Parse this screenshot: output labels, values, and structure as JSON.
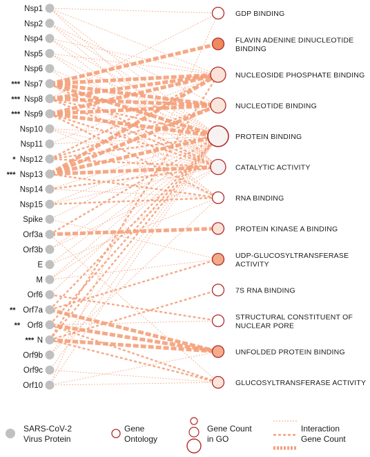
{
  "colors": {
    "edge": "#f4a07a",
    "protein_node": "#c0c0c0",
    "go_stroke": "#b02a2a",
    "text": "#1a1a1a"
  },
  "proteins": [
    {
      "name": "Nsp1",
      "sig": ""
    },
    {
      "name": "Nsp2",
      "sig": ""
    },
    {
      "name": "Nsp4",
      "sig": ""
    },
    {
      "name": "Nsp5",
      "sig": ""
    },
    {
      "name": "Nsp6",
      "sig": ""
    },
    {
      "name": "Nsp7",
      "sig": "***"
    },
    {
      "name": "Nsp8",
      "sig": "***"
    },
    {
      "name": "Nsp9",
      "sig": "***"
    },
    {
      "name": "Nsp10",
      "sig": ""
    },
    {
      "name": "Nsp11",
      "sig": ""
    },
    {
      "name": "Nsp12",
      "sig": "*"
    },
    {
      "name": "Nsp13",
      "sig": "***"
    },
    {
      "name": "Nsp14",
      "sig": ""
    },
    {
      "name": "Nsp15",
      "sig": ""
    },
    {
      "name": "Spike",
      "sig": ""
    },
    {
      "name": "Orf3a",
      "sig": ""
    },
    {
      "name": "Orf3b",
      "sig": ""
    },
    {
      "name": "E",
      "sig": ""
    },
    {
      "name": "M",
      "sig": ""
    },
    {
      "name": "Orf6",
      "sig": ""
    },
    {
      "name": "Orf7a",
      "sig": "**"
    },
    {
      "name": "Orf8",
      "sig": "**"
    },
    {
      "name": "N",
      "sig": "***"
    },
    {
      "name": "Orf9b",
      "sig": ""
    },
    {
      "name": "Orf9c",
      "sig": ""
    },
    {
      "name": "Orf10",
      "sig": ""
    }
  ],
  "go_terms": [
    {
      "lines": [
        "GDP BINDING"
      ],
      "size": 1,
      "fill": "#ffffff"
    },
    {
      "lines": [
        "FLAVIN ADENINE DINUCLEOTIDE",
        "BINDING"
      ],
      "size": 1,
      "fill": "#ee8a5e"
    },
    {
      "lines": [
        "NUCLEOSIDE PHOSPHATE BINDING"
      ],
      "size": 2,
      "fill": "#fbe1d6"
    },
    {
      "lines": [
        "NUCLEOTIDE BINDING"
      ],
      "size": 2,
      "fill": "#fbe4da"
    },
    {
      "lines": [
        "PROTEIN BINDING"
      ],
      "size": 3,
      "fill": "#f7f2f2"
    },
    {
      "lines": [
        "CATALYTIC ACTIVITY"
      ],
      "size": 2,
      "fill": "#f6f0f0"
    },
    {
      "lines": [
        "RNA BINDING"
      ],
      "size": 1,
      "fill": "#ffffff"
    },
    {
      "lines": [
        "PROTEIN KINASE A BINDING"
      ],
      "size": 1,
      "fill": "#fbe1d6"
    },
    {
      "lines": [
        "UDP-GLUCOSYLTRANSFERASE",
        "ACTIVITY"
      ],
      "size": 1,
      "fill": "#f2aa88"
    },
    {
      "lines": [
        "7S RNA BINDING"
      ],
      "size": 1,
      "fill": "#ffffff"
    },
    {
      "lines": [
        "STRUCTURAL CONSTITUENT OF",
        "NUCLEAR PORE"
      ],
      "size": 1,
      "fill": "#ffffff"
    },
    {
      "lines": [
        "UNFOLDED PROTEIN BINDING"
      ],
      "size": 1,
      "fill": "#f3ad8c"
    },
    {
      "lines": [
        "GLUCOSYLTRANSFERASE ACTIVITY"
      ],
      "size": 1,
      "fill": "#fbe4da"
    }
  ],
  "edges": [
    [
      0,
      0,
      1
    ],
    [
      0,
      2,
      1
    ],
    [
      0,
      4,
      1
    ],
    [
      0,
      5,
      1
    ],
    [
      1,
      4,
      1
    ],
    [
      1,
      3,
      1
    ],
    [
      1,
      5,
      1
    ],
    [
      2,
      4,
      1
    ],
    [
      2,
      2,
      1
    ],
    [
      2,
      5,
      1
    ],
    [
      3,
      4,
      1
    ],
    [
      3,
      5,
      1
    ],
    [
      3,
      2,
      1
    ],
    [
      4,
      4,
      1
    ],
    [
      4,
      6,
      1
    ],
    [
      5,
      1,
      3
    ],
    [
      5,
      2,
      3
    ],
    [
      5,
      3,
      3
    ],
    [
      5,
      4,
      3
    ],
    [
      5,
      5,
      2
    ],
    [
      5,
      6,
      1
    ],
    [
      6,
      2,
      3
    ],
    [
      6,
      3,
      3
    ],
    [
      6,
      4,
      2
    ],
    [
      6,
      5,
      2
    ],
    [
      6,
      0,
      1
    ],
    [
      7,
      2,
      3
    ],
    [
      7,
      3,
      3
    ],
    [
      7,
      4,
      3
    ],
    [
      7,
      5,
      2
    ],
    [
      7,
      6,
      2
    ],
    [
      8,
      4,
      1
    ],
    [
      8,
      5,
      1
    ],
    [
      8,
      6,
      1
    ],
    [
      9,
      4,
      1
    ],
    [
      9,
      2,
      1
    ],
    [
      10,
      2,
      2
    ],
    [
      10,
      3,
      2
    ],
    [
      10,
      4,
      2
    ],
    [
      10,
      5,
      2
    ],
    [
      11,
      2,
      3
    ],
    [
      11,
      3,
      3
    ],
    [
      11,
      4,
      3
    ],
    [
      11,
      5,
      3
    ],
    [
      11,
      6,
      2
    ],
    [
      12,
      4,
      1
    ],
    [
      12,
      5,
      2
    ],
    [
      12,
      6,
      1
    ],
    [
      13,
      4,
      1
    ],
    [
      13,
      5,
      1
    ],
    [
      13,
      6,
      2
    ],
    [
      14,
      4,
      1
    ],
    [
      14,
      8,
      1
    ],
    [
      15,
      4,
      2
    ],
    [
      15,
      7,
      3
    ],
    [
      15,
      12,
      1
    ],
    [
      16,
      4,
      1
    ],
    [
      16,
      5,
      1
    ],
    [
      17,
      4,
      1
    ],
    [
      17,
      6,
      1
    ],
    [
      18,
      4,
      1
    ],
    [
      18,
      5,
      1
    ],
    [
      18,
      8,
      1
    ],
    [
      19,
      10,
      2
    ],
    [
      19,
      4,
      1
    ],
    [
      20,
      4,
      2
    ],
    [
      20,
      8,
      2
    ],
    [
      20,
      11,
      3
    ],
    [
      21,
      4,
      2
    ],
    [
      21,
      11,
      3
    ],
    [
      21,
      12,
      2
    ],
    [
      21,
      10,
      1
    ],
    [
      22,
      2,
      2
    ],
    [
      22,
      4,
      2
    ],
    [
      22,
      9,
      2
    ],
    [
      22,
      12,
      2
    ],
    [
      22,
      11,
      3
    ],
    [
      23,
      4,
      1
    ],
    [
      23,
      6,
      1
    ],
    [
      24,
      4,
      1
    ],
    [
      24,
      12,
      1
    ],
    [
      25,
      4,
      1
    ],
    [
      25,
      12,
      1
    ],
    [
      25,
      0,
      1
    ],
    [
      25,
      11,
      1
    ]
  ],
  "legend": {
    "protein_line1": "SARS-CoV-2",
    "protein_line2": "Virus Protein",
    "go_line1": "Gene",
    "go_line2": "Ontology",
    "gene_count_line1": "Gene Count",
    "gene_count_line2": "in GO",
    "interaction_line1": "Interaction",
    "interaction_line2": "Gene Count"
  }
}
